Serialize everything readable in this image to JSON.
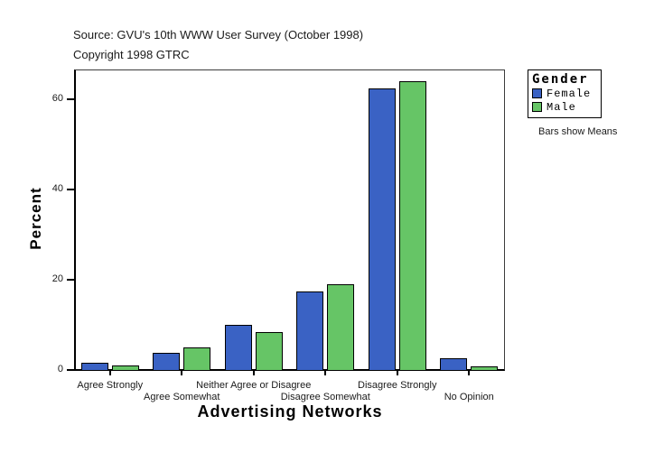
{
  "header": {
    "source_line": "Source: GVU's 10th WWW User Survey (October 1998)",
    "copyright_line": "Copyright 1998 GTRC"
  },
  "chart_data": {
    "type": "bar",
    "title": "",
    "xlabel": "Advertising Networks",
    "ylabel": "Percent",
    "categories": [
      "Agree Strongly",
      "Agree Somewhat",
      "Neither Agree or Disagree",
      "Disagree Somewhat",
      "Disagree Strongly",
      "No Opinion"
    ],
    "series": [
      {
        "name": "Female",
        "color": "#3A62C4",
        "values": [
          1.8,
          4.0,
          10.2,
          17.5,
          62.5,
          2.7
        ]
      },
      {
        "name": "Male",
        "color": "#66C566",
        "values": [
          1.2,
          5.2,
          8.5,
          19.1,
          64.2,
          0.9
        ]
      }
    ],
    "ylim": [
      0,
      66.8
    ],
    "yticks": [
      0,
      20,
      40,
      60
    ],
    "grid": false,
    "legend_title": "Gender",
    "legend_position": "outside-top-right",
    "footnote": "Bars show Means"
  }
}
